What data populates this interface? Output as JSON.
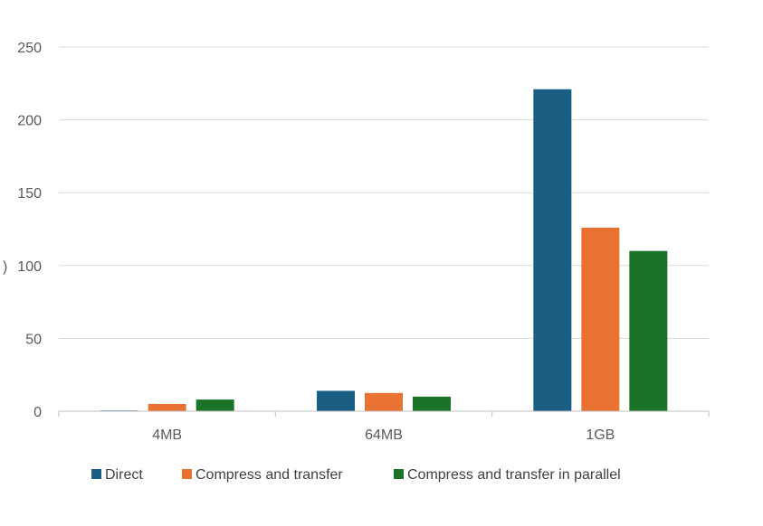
{
  "chart_data": {
    "type": "bar",
    "categories": [
      "4MB",
      "64MB",
      "1GB"
    ],
    "series": [
      {
        "name": "Direct",
        "values": [
          0.5,
          14,
          221
        ],
        "color": "#1b5e84"
      },
      {
        "name": "Compress and transfer",
        "values": [
          5,
          12.5,
          126
        ],
        "color": "#e97232"
      },
      {
        "name": "Compress and transfer in parallel",
        "values": [
          8,
          10,
          110
        ],
        "color": "#1b7327"
      }
    ],
    "ylim": [
      0,
      250
    ],
    "yticks": [
      0,
      50,
      100,
      150,
      200,
      250
    ],
    "grid": true,
    "legend": "bottom",
    "ylabel_fragment": ")"
  }
}
